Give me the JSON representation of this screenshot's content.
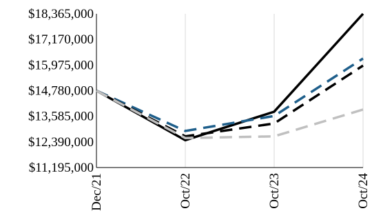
{
  "chart_data": {
    "type": "line",
    "title": "",
    "xlabel": "",
    "ylabel": "",
    "categories": [
      "Dec/21",
      "Oct/22",
      "Oct/23",
      "Oct/24"
    ],
    "ylim": [
      11195000,
      18365000
    ],
    "yticks": [
      11195000,
      12390000,
      13585000,
      14780000,
      15975000,
      17170000,
      18365000
    ],
    "ytick_labels": [
      "$11,195,000",
      "$12,390,000",
      "$13,585,000",
      "$14,780,000",
      "$15,975,000",
      "$17,170,000",
      "$18,365,000"
    ],
    "grid": "vertical",
    "legend": "none",
    "series": [
      {
        "values": [
          14780000,
          12470000,
          13800000,
          18365000
        ],
        "color": "#000000",
        "dash": "solid"
      },
      {
        "values": [
          14780000,
          12900000,
          13600000,
          16280000
        ],
        "color": "#1f5f8b",
        "dash": "dashed"
      },
      {
        "values": [
          14780000,
          12650000,
          13250000,
          15950000
        ],
        "color": "#000000",
        "dash": "dashed"
      },
      {
        "values": [
          14780000,
          12570000,
          12650000,
          13900000
        ],
        "color": "#c0c0c0",
        "dash": "dashed"
      }
    ]
  }
}
